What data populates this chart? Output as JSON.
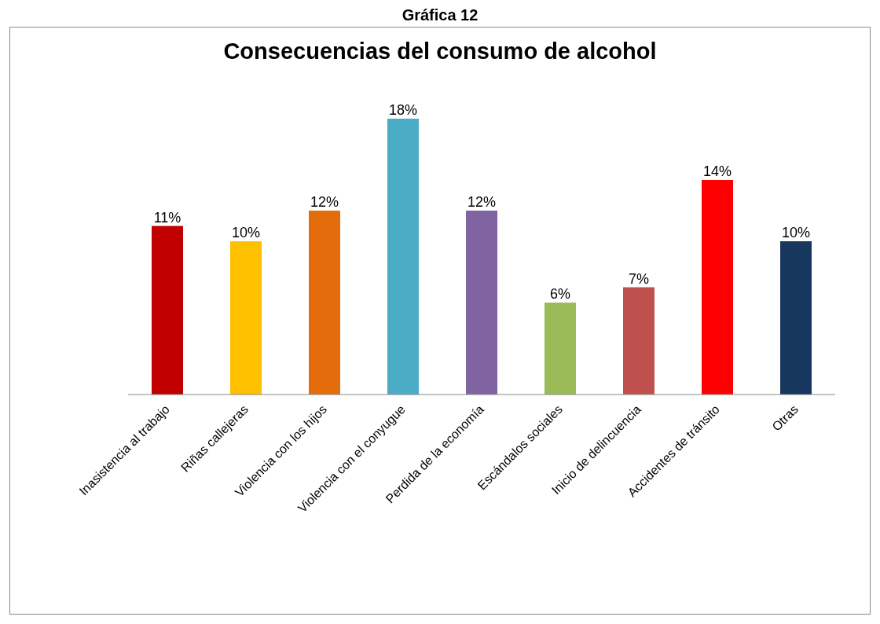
{
  "chart_data": {
    "type": "bar",
    "title": "Consecuencias del consumo de alcohol",
    "annotations": [
      "Gráfica 12"
    ],
    "categories": [
      "Inasistencia al trabajo",
      "Riñas callejeras",
      "Violencia con los hijos",
      "Violencia con el conyugue",
      "Perdida de la economía",
      "Escándalos sociales",
      "Inicio de delincuencia",
      "Accidentes de tránsito",
      "Otras"
    ],
    "values": [
      11,
      10,
      12,
      18,
      12,
      6,
      7,
      14,
      10
    ],
    "colors": [
      "#c00000",
      "#ffc000",
      "#e46c0a",
      "#4bacc6",
      "#8064a2",
      "#9bbb59",
      "#c0504d",
      "#ff0000",
      "#17375e"
    ],
    "value_labels": [
      "11%",
      "10%",
      "12%",
      "18%",
      "12%",
      "6%",
      "7%",
      "14%",
      "10%"
    ],
    "grid": false
  }
}
